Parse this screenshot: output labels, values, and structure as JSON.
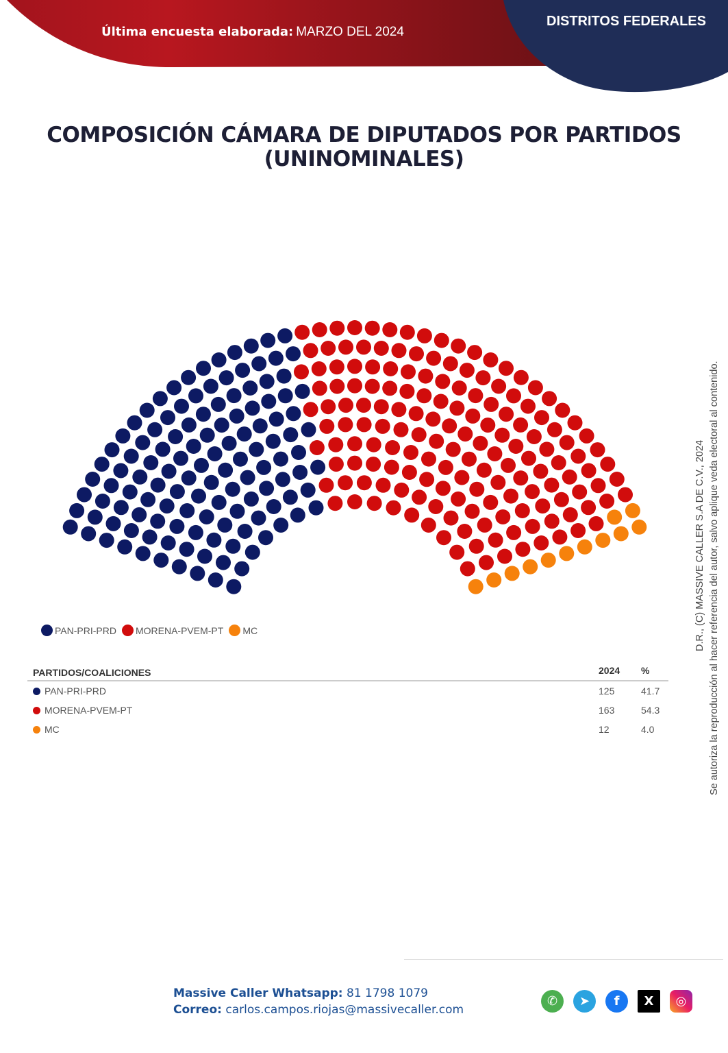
{
  "header": {
    "survey_label": "Última encuesta elaborada:",
    "survey_date": "MARZO DEL 2024",
    "section": "DISTRITOS FEDERALES",
    "colors": {
      "red": "#b3161f",
      "navy": "#1f2d57"
    }
  },
  "chart_data": {
    "type": "parliament",
    "title": "COMPOSICIÓN CÁMARA DE DIPUTADOS POR PARTIDOS (UNINOMINALES)",
    "title_line1": "COMPOSICIÓN CÁMARA DE DIPUTADOS POR PARTIDOS",
    "title_line2": "(UNINOMINALES)",
    "total_seats": 300,
    "rows": 10,
    "legend_placement": "bottom-left",
    "series": [
      {
        "name": "PAN-PRI-PRD",
        "seats": 125,
        "percent": 41.7,
        "color": "#0d1a63"
      },
      {
        "name": "MORENA-PVEM-PT",
        "seats": 163,
        "percent": 54.3,
        "color": "#d10c0c"
      },
      {
        "name": "MC",
        "seats": 12,
        "percent": 4.0,
        "color": "#f6820c"
      }
    ]
  },
  "table": {
    "headers": [
      "PARTIDOS/COALICIONES",
      "2024",
      "%"
    ],
    "rows": [
      {
        "name": "PAN-PRI-PRD",
        "value": "125",
        "pct": "41.7"
      },
      {
        "name": "MORENA-PVEM-PT",
        "value": "163",
        "pct": "54.3"
      },
      {
        "name": "MC",
        "value": "12",
        "pct": "4.0"
      }
    ]
  },
  "copyright": {
    "line1": "D.R., (C) MASSIVE CALLER S.A DE C.V., 2024",
    "line2": "Se autoriza la reproducción al hacer referencia del autor, salvo aplique veda electoral al contenido."
  },
  "footer": {
    "whatsapp_label": "Massive Caller Whatsapp:",
    "whatsapp_number": "81 1798 1079",
    "email_label": "Correo:",
    "email": "carlos.campos.riojas@massivecaller.com",
    "social_icons": [
      "whatsapp-icon",
      "telegram-icon",
      "facebook-icon",
      "x-icon",
      "instagram-icon"
    ]
  }
}
